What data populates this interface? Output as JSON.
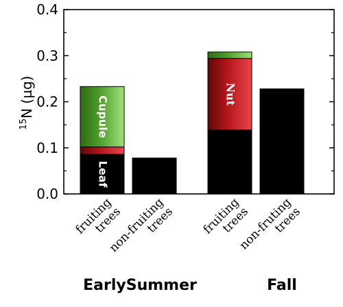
{
  "chart_data": {
    "type": "bar",
    "stacked": true,
    "ylabel": "N (µg)",
    "ylabel_superscript": "15",
    "ylim": [
      0,
      0.4
    ],
    "yticks": [
      "0.0",
      "0.1",
      "0.2",
      "0.3",
      "0.4"
    ],
    "grid": false,
    "categories": [
      {
        "lines": [
          "fruiting",
          "trees"
        ]
      },
      {
        "lines": [
          "non-fruiting",
          "trees"
        ]
      },
      {
        "lines": [
          "fruiting",
          "trees"
        ]
      },
      {
        "lines": [
          "non-fruting",
          "trees"
        ]
      }
    ],
    "groups": [
      {
        "label": "EarlySummer",
        "categories": [
          0,
          1
        ]
      },
      {
        "label": "Fall",
        "categories": [
          2,
          3
        ]
      }
    ],
    "series": [
      {
        "name": "Leaf",
        "color": "#000000",
        "values": [
          0.086,
          0.078,
          0.139,
          0.228
        ]
      },
      {
        "name": "Nut",
        "color": "#c0151b",
        "values": [
          0.016,
          0,
          0.155,
          0
        ]
      },
      {
        "name": "Cupule",
        "color": "#4fa82b",
        "values": [
          0.131,
          0,
          0.014,
          0
        ]
      }
    ],
    "segment_labels": [
      {
        "category": 0,
        "series": "Leaf",
        "text": "Leaf"
      },
      {
        "category": 0,
        "series": "Cupule",
        "text": "Cupule"
      },
      {
        "category": 2,
        "series": "Nut",
        "text": "Nut"
      }
    ]
  }
}
